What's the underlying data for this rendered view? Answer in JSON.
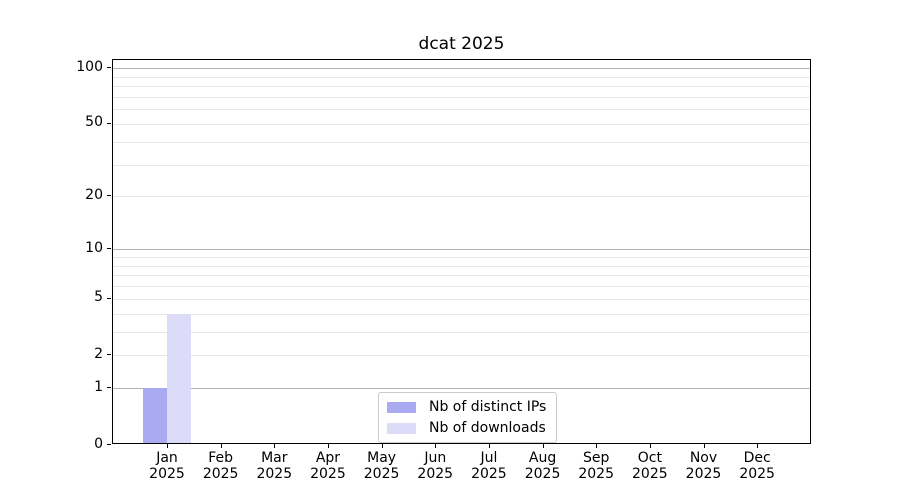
{
  "chart_data": {
    "type": "bar",
    "title": "dcat 2025",
    "categories": [
      "Jan 2025",
      "Feb 2025",
      "Mar 2025",
      "Apr 2025",
      "May 2025",
      "Jun 2025",
      "Jul 2025",
      "Aug 2025",
      "Sep 2025",
      "Oct 2025",
      "Nov 2025",
      "Dec 2025"
    ],
    "series": [
      {
        "name": "Nb of distinct IPs",
        "color": "#aaaaf2",
        "values": [
          1,
          0,
          0,
          0,
          0,
          0,
          0,
          0,
          0,
          0,
          0,
          0
        ]
      },
      {
        "name": "Nb of downloads",
        "color": "#dcdcf8",
        "values": [
          4,
          0,
          0,
          0,
          0,
          0,
          0,
          0,
          0,
          0,
          0,
          0
        ]
      }
    ],
    "xlabel": "",
    "ylabel": "",
    "y_axis": {
      "scale": "log1p",
      "tick_labels": [
        0,
        1,
        2,
        5,
        10,
        20,
        50,
        100
      ],
      "major_gridlines": [
        1,
        10,
        100
      ],
      "minor_gridlines": [
        2,
        3,
        4,
        5,
        6,
        7,
        8,
        9,
        20,
        30,
        40,
        50,
        60,
        70,
        80,
        90
      ],
      "ylim": [
        0,
        111
      ]
    },
    "legend": {
      "position": "lower center",
      "entries": [
        "Nb of distinct IPs",
        "Nb of downloads"
      ]
    },
    "colors": {
      "grid_major": "#b4b4b4",
      "grid_minor": "#e7e7e7",
      "axis": "#000000",
      "text": "#000000",
      "legend_border": "#cccccc",
      "legend_background": "#ffffff"
    }
  }
}
